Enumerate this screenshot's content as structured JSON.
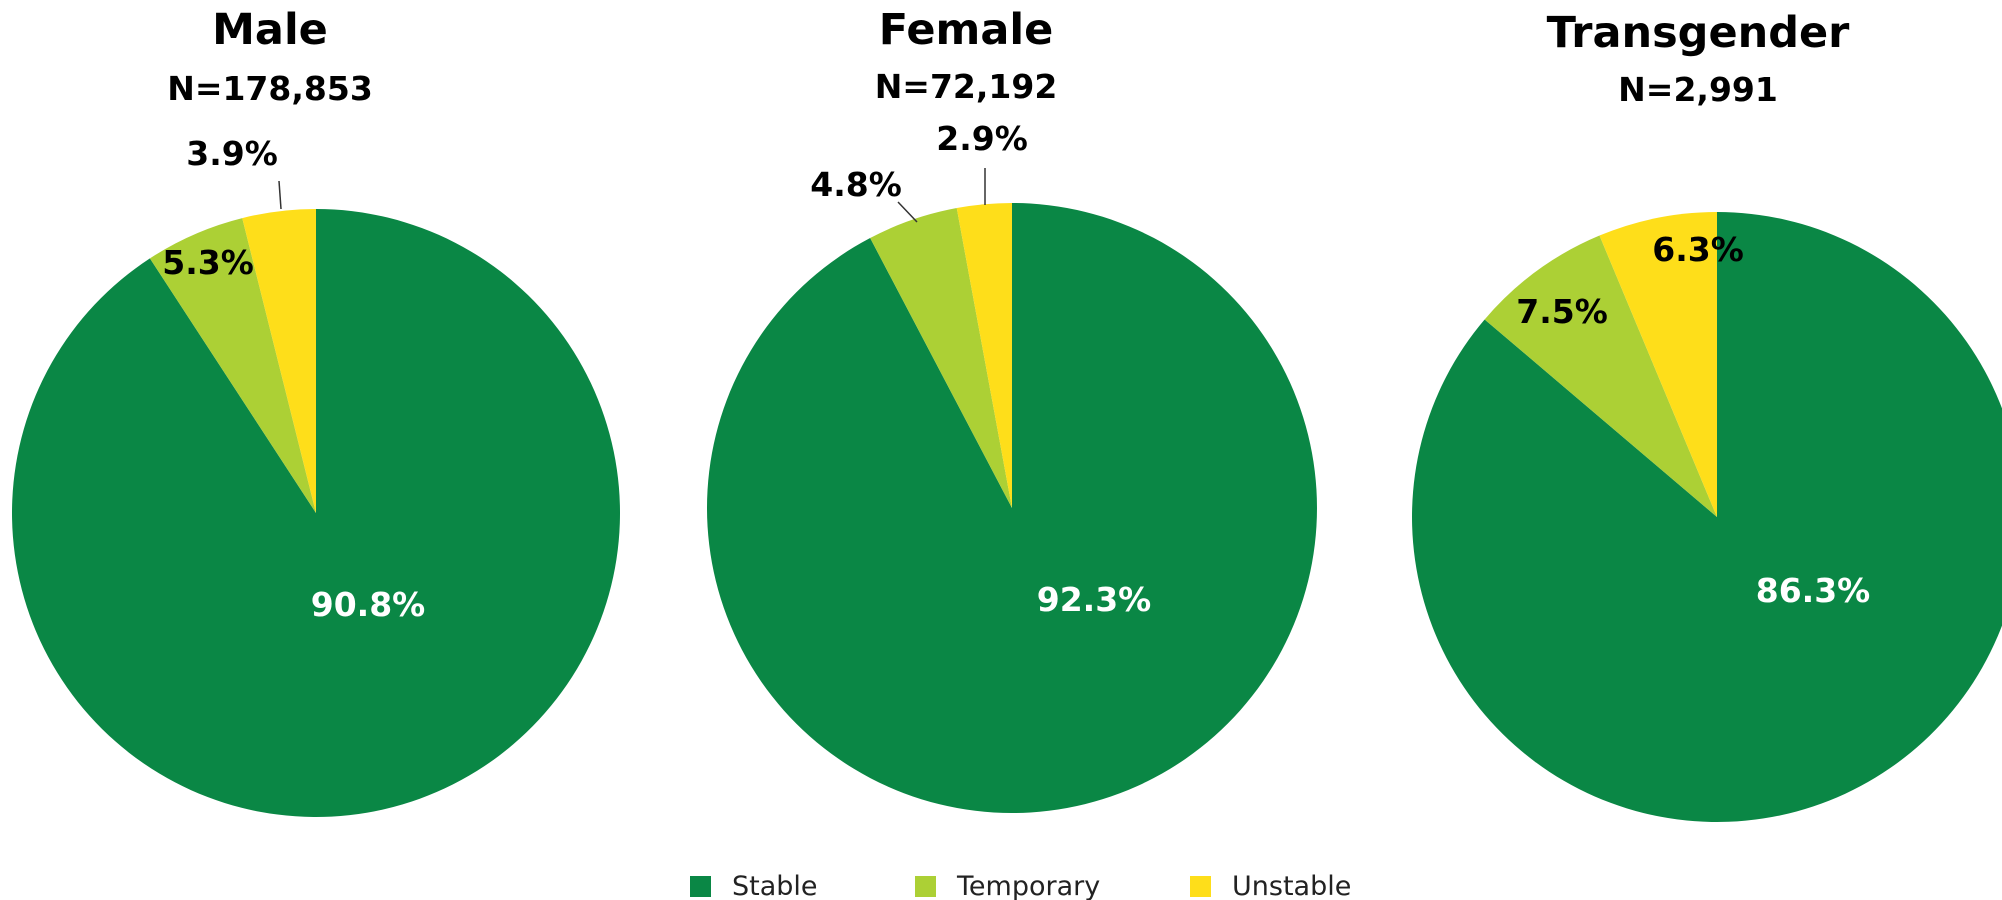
{
  "chart_data": [
    {
      "type": "pie",
      "title": "Male",
      "subtitle": "N=178,853",
      "categories": [
        "Stable",
        "Temporary",
        "Unstable"
      ],
      "values": [
        90.8,
        5.3,
        3.9
      ],
      "labels": [
        "90.8%",
        "5.3%",
        "3.9%"
      ]
    },
    {
      "type": "pie",
      "title": "Female",
      "subtitle": "N=72,192",
      "categories": [
        "Stable",
        "Temporary",
        "Unstable"
      ],
      "values": [
        92.3,
        4.8,
        2.9
      ],
      "labels": [
        "92.3%",
        "4.8%",
        "2.9%"
      ]
    },
    {
      "type": "pie",
      "title": "Transgender",
      "subtitle": "N=2,991",
      "categories": [
        "Stable",
        "Temporary",
        "Unstable"
      ],
      "values": [
        86.3,
        7.5,
        6.3
      ],
      "labels": [
        "86.3%",
        "7.5%",
        "6.3%"
      ]
    }
  ],
  "legend": {
    "placement": "bottom-center",
    "items": [
      {
        "label": "Stable",
        "color": "#0a8745"
      },
      {
        "label": "Temporary",
        "color": "#acd035"
      },
      {
        "label": "Unstable",
        "color": "#fede1a"
      }
    ]
  },
  "colors": {
    "stable": "#0a8745",
    "temporary": "#acd035",
    "unstable": "#fede1a"
  }
}
